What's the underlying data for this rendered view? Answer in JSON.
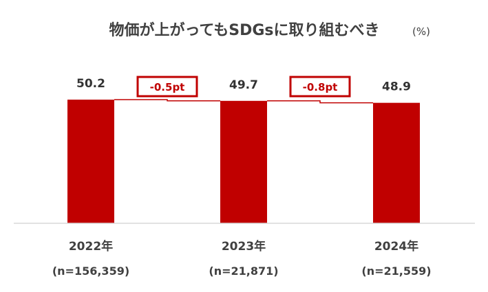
{
  "chart_data": {
    "type": "bar",
    "title": "物価が上がってもSDGsに取り組むべき",
    "unit": "(%)",
    "categories": [
      "2022年",
      "2023年",
      "2024年"
    ],
    "sample_sizes": [
      "(n=156,359)",
      "(n=21,871)",
      "(n=21,559)"
    ],
    "values": [
      50.2,
      49.7,
      48.9
    ],
    "value_labels": [
      "50.2",
      "49.7",
      "48.9"
    ],
    "differences": [
      "-0.5pt",
      "-0.8pt"
    ],
    "ylim": [
      0,
      60
    ],
    "grid": false,
    "legend": "none",
    "colors": {
      "bar": "#c00000",
      "connector": "#c00000",
      "diff_border": "#c00000",
      "diff_text": "#c00000",
      "axis": "#d9d9d9",
      "text": "#404040"
    }
  }
}
